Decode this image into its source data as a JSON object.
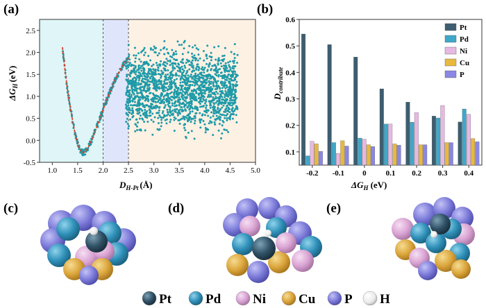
{
  "panels": {
    "a": "(a)",
    "b": "(b)",
    "c": "(c)",
    "d": "(d)",
    "e": "(e)"
  },
  "chart_data": [
    {
      "type": "scatter",
      "panel": "a",
      "xlabel_main": "D",
      "xlabel_sub": "H-Pt",
      "xlabel_unit": "(Å)",
      "ylabel_main": "ΔG",
      "ylabel_sub": "H",
      "ylabel_unit": "(eV)",
      "xlim": [
        0.75,
        5.0
      ],
      "ylim": [
        -0.5,
        2.75
      ],
      "xticks": [
        "1.0",
        "1.5",
        "2.0",
        "2.5",
        "3.0",
        "3.5",
        "4.0",
        "4.5",
        "5.0"
      ],
      "yticks": [
        "-0.5",
        "0.0",
        "0.5",
        "1.0",
        "1.5",
        "2.0",
        "2.5"
      ],
      "regions": [
        {
          "from": 0.75,
          "to": 2.0,
          "color": "#dff5f7"
        },
        {
          "from": 2.0,
          "to": 2.5,
          "color": "#dfe6fb"
        },
        {
          "from": 2.5,
          "to": 5.0,
          "color": "#fdf1e4"
        }
      ],
      "dividers": [
        2.0,
        2.5
      ],
      "point_color": "#1e9aa8",
      "fit_color": "#d9452b",
      "fit_curve": [
        [
          1.2,
          2.12
        ],
        [
          1.25,
          1.6
        ],
        [
          1.3,
          1.15
        ],
        [
          1.35,
          0.78
        ],
        [
          1.4,
          0.45
        ],
        [
          1.45,
          0.15
        ],
        [
          1.5,
          -0.07
        ],
        [
          1.55,
          -0.22
        ],
        [
          1.6,
          -0.28
        ],
        [
          1.65,
          -0.26
        ],
        [
          1.7,
          -0.18
        ],
        [
          1.75,
          -0.06
        ],
        [
          1.8,
          0.08
        ],
        [
          1.9,
          0.38
        ],
        [
          2.0,
          0.7
        ],
        [
          2.1,
          1.0
        ],
        [
          2.2,
          1.28
        ],
        [
          2.3,
          1.52
        ],
        [
          2.4,
          1.72
        ],
        [
          2.5,
          1.88
        ]
      ],
      "cloud": {
        "x_range": [
          2.45,
          4.65
        ],
        "y_center": 1.15,
        "y_spread": 0.85
      }
    },
    {
      "type": "bar",
      "panel": "b",
      "categories": [
        "-0.2",
        "-0.1",
        "0",
        "0.1",
        "0.2",
        "0.3",
        "0.4"
      ],
      "xlabel_main": "ΔG",
      "xlabel_sub": "H",
      "xlabel_unit": "(eV)",
      "ylabel_main": "D",
      "ylabel_sub": "contribute",
      "ylim": [
        0.05,
        0.6
      ],
      "yticks": [
        "0.1",
        "0.2",
        "0.3",
        "0.4",
        "0.5",
        "0.6"
      ],
      "series": [
        {
          "name": "Pt",
          "color": "#3d5d70",
          "values": [
            0.545,
            0.505,
            0.458,
            0.338,
            0.288,
            0.235,
            0.213
          ]
        },
        {
          "name": "Pd",
          "color": "#3ea8c9",
          "values": [
            0.085,
            0.135,
            0.152,
            0.205,
            0.212,
            0.228,
            0.262
          ]
        },
        {
          "name": "Ni",
          "color": "#e7b8e2",
          "values": [
            0.14,
            0.094,
            0.148,
            0.205,
            0.248,
            0.275,
            0.242
          ]
        },
        {
          "name": "Cu",
          "color": "#e8b93f",
          "values": [
            0.13,
            0.142,
            0.127,
            0.13,
            0.127,
            0.135,
            0.15
          ]
        },
        {
          "name": "P",
          "color": "#8a88e2",
          "values": [
            0.102,
            0.122,
            0.12,
            0.125,
            0.127,
            0.135,
            0.138
          ]
        }
      ]
    }
  ],
  "legend_atoms": [
    {
      "label": "Pt",
      "color": "#29475a"
    },
    {
      "label": "Pd",
      "color": "#2e8fb8"
    },
    {
      "label": "Ni",
      "color": "#d9a3d3"
    },
    {
      "label": "Cu",
      "color": "#dba53b"
    },
    {
      "label": "P",
      "color": "#7a79d8"
    },
    {
      "label": "H",
      "color": "#f0f0f0"
    }
  ]
}
